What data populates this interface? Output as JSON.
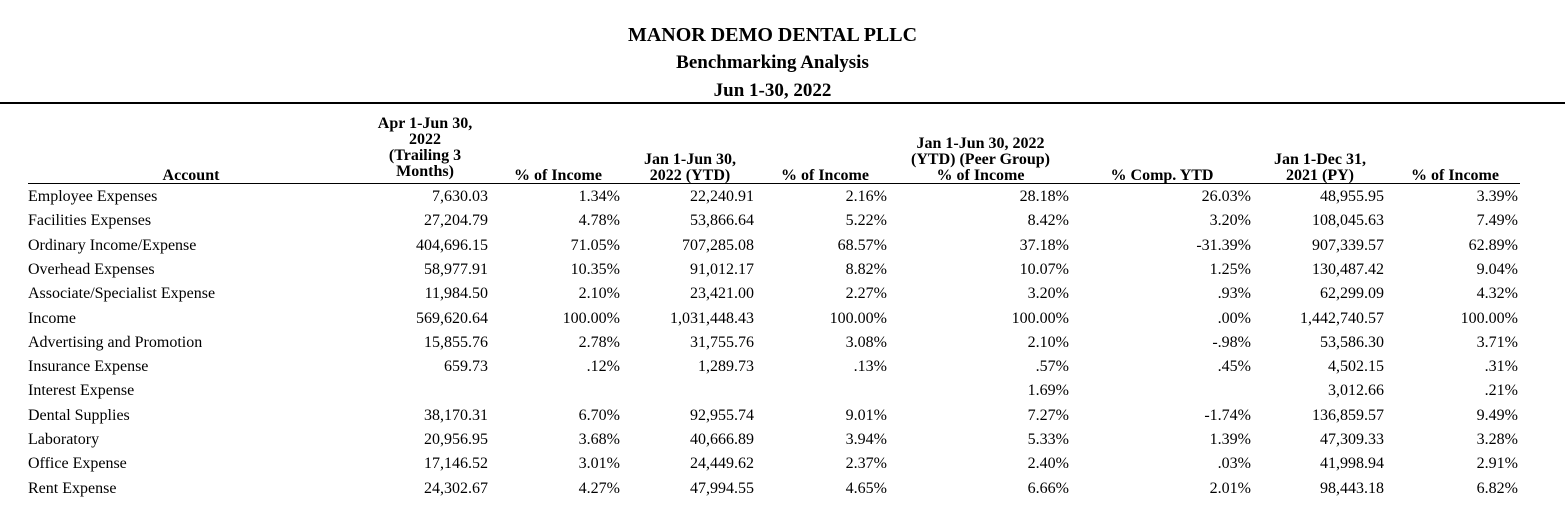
{
  "report": {
    "company": "MANOR DEMO DENTAL PLLC",
    "title": "Benchmarking Analysis",
    "period": "Jun 1-30, 2022"
  },
  "columns": {
    "account": "Account",
    "trailing_l1": "Apr 1-Jun 30,",
    "trailing_l2": "2022",
    "trailing_l3": "(Trailing 3",
    "trailing_l4": "Months)",
    "pct1": "% of Income",
    "ytd_l1": "Jan 1-Jun 30,",
    "ytd_l2": "2022 (YTD)",
    "pct2": "% of Income",
    "peer_l1": "Jan 1-Jun 30, 2022",
    "peer_l2": "(YTD) (Peer Group)",
    "peer_l3": "% of Income",
    "comp": "% Comp. YTD",
    "py_l1": "Jan 1-Dec 31,",
    "py_l2": "2021 (PY)",
    "pct3": "% of Income"
  },
  "rows": [
    {
      "account": "Employee Expenses",
      "trailing": "7,630.03",
      "pct1": "1.34%",
      "ytd": "22,240.91",
      "pct2": "2.16%",
      "peer": "28.18%",
      "comp": "26.03%",
      "py": "48,955.95",
      "pct3": "3.39%"
    },
    {
      "account": "Facilities Expenses",
      "trailing": "27,204.79",
      "pct1": "4.78%",
      "ytd": "53,866.64",
      "pct2": "5.22%",
      "peer": "8.42%",
      "comp": "3.20%",
      "py": "108,045.63",
      "pct3": "7.49%"
    },
    {
      "account": "Ordinary Income/Expense",
      "trailing": "404,696.15",
      "pct1": "71.05%",
      "ytd": "707,285.08",
      "pct2": "68.57%",
      "peer": "37.18%",
      "comp": "-31.39%",
      "py": "907,339.57",
      "pct3": "62.89%"
    },
    {
      "account": "Overhead Expenses",
      "trailing": "58,977.91",
      "pct1": "10.35%",
      "ytd": "91,012.17",
      "pct2": "8.82%",
      "peer": "10.07%",
      "comp": "1.25%",
      "py": "130,487.42",
      "pct3": "9.04%"
    },
    {
      "account": "Associate/Specialist Expense",
      "trailing": "11,984.50",
      "pct1": "2.10%",
      "ytd": "23,421.00",
      "pct2": "2.27%",
      "peer": "3.20%",
      "comp": ".93%",
      "py": "62,299.09",
      "pct3": "4.32%"
    },
    {
      "account": "Income",
      "trailing": "569,620.64",
      "pct1": "100.00%",
      "ytd": "1,031,448.43",
      "pct2": "100.00%",
      "peer": "100.00%",
      "comp": ".00%",
      "py": "1,442,740.57",
      "pct3": "100.00%"
    },
    {
      "account": "Advertising and Promotion",
      "trailing": "15,855.76",
      "pct1": "2.78%",
      "ytd": "31,755.76",
      "pct2": "3.08%",
      "peer": "2.10%",
      "comp": "-.98%",
      "py": "53,586.30",
      "pct3": "3.71%"
    },
    {
      "account": "Insurance Expense",
      "trailing": "659.73",
      "pct1": ".12%",
      "ytd": "1,289.73",
      "pct2": ".13%",
      "peer": ".57%",
      "comp": ".45%",
      "py": "4,502.15",
      "pct3": ".31%"
    },
    {
      "account": "Interest Expense",
      "trailing": "",
      "pct1": "",
      "ytd": "",
      "pct2": "",
      "peer": "1.69%",
      "comp": "",
      "py": "3,012.66",
      "pct3": ".21%"
    },
    {
      "account": "Dental Supplies",
      "trailing": "38,170.31",
      "pct1": "6.70%",
      "ytd": "92,955.74",
      "pct2": "9.01%",
      "peer": "7.27%",
      "comp": "-1.74%",
      "py": "136,859.57",
      "pct3": "9.49%"
    },
    {
      "account": "Laboratory",
      "trailing": "20,956.95",
      "pct1": "3.68%",
      "ytd": "40,666.89",
      "pct2": "3.94%",
      "peer": "5.33%",
      "comp": "1.39%",
      "py": "47,309.33",
      "pct3": "3.28%"
    },
    {
      "account": "Office Expense",
      "trailing": "17,146.52",
      "pct1": "3.01%",
      "ytd": "24,449.62",
      "pct2": "2.37%",
      "peer": "2.40%",
      "comp": ".03%",
      "py": "41,998.94",
      "pct3": "2.91%"
    },
    {
      "account": "Rent Expense",
      "trailing": "24,302.67",
      "pct1": "4.27%",
      "ytd": "47,994.55",
      "pct2": "4.65%",
      "peer": "6.66%",
      "comp": "2.01%",
      "py": "98,443.18",
      "pct3": "6.82%"
    }
  ]
}
